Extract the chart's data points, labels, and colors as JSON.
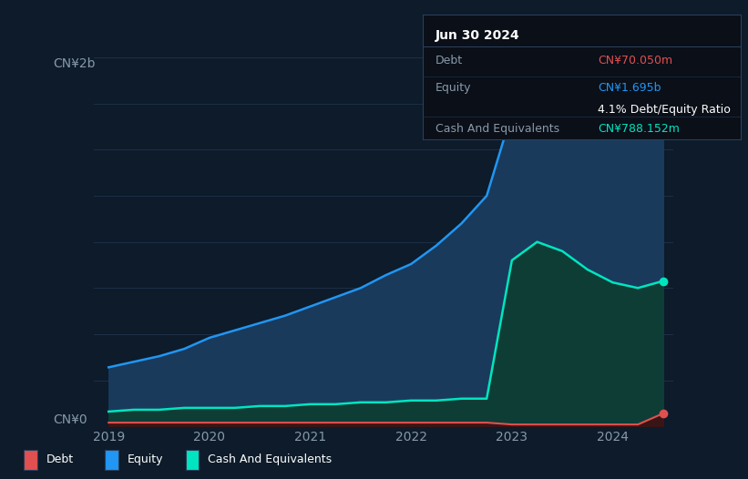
{
  "background_color": "#0d1b2a",
  "plot_bg_color": "#0d1b2a",
  "title": "Jun 30 2024",
  "ylabel_top": "CN¥2b",
  "ylabel_bottom": "CN¥0",
  "x_labels": [
    "2019",
    "2020",
    "2021",
    "2022",
    "2023",
    "2024"
  ],
  "equity_color": "#2196f3",
  "equity_fill_color": "#1a3a5c",
  "cash_color": "#00e5c0",
  "cash_fill_color": "#0d3d35",
  "debt_color": "#e05050",
  "debt_fill_color": "#3a1515",
  "grid_color": "#1e3048",
  "legend_border_color": "#2a3f5a",
  "tooltip_bg": "#0a0f18",
  "tooltip_border": "#2a3f5a",
  "x_values": [
    2019.0,
    2019.25,
    2019.5,
    2019.75,
    2020.0,
    2020.25,
    2020.5,
    2020.75,
    2021.0,
    2021.25,
    2021.5,
    2021.75,
    2022.0,
    2022.25,
    2022.5,
    2022.75,
    2023.0,
    2023.25,
    2023.5,
    2023.75,
    2024.0,
    2024.25,
    2024.5
  ],
  "equity_values": [
    0.32,
    0.35,
    0.38,
    0.42,
    0.48,
    0.52,
    0.56,
    0.6,
    0.65,
    0.7,
    0.75,
    0.82,
    0.88,
    0.98,
    1.1,
    1.25,
    1.7,
    1.72,
    1.74,
    1.76,
    1.78,
    1.8,
    1.695
  ],
  "cash_values": [
    0.08,
    0.09,
    0.09,
    0.1,
    0.1,
    0.1,
    0.11,
    0.11,
    0.12,
    0.12,
    0.13,
    0.13,
    0.14,
    0.14,
    0.15,
    0.15,
    0.9,
    1.0,
    0.95,
    0.85,
    0.78,
    0.75,
    0.788
  ],
  "debt_values": [
    0.02,
    0.02,
    0.02,
    0.02,
    0.02,
    0.02,
    0.02,
    0.02,
    0.02,
    0.02,
    0.02,
    0.02,
    0.02,
    0.02,
    0.02,
    0.02,
    0.01,
    0.01,
    0.01,
    0.01,
    0.01,
    0.01,
    0.07
  ],
  "ylim": [
    0,
    2.0
  ],
  "xlim": [
    2018.85,
    2024.6
  ],
  "legend_items": [
    "Debt",
    "Equity",
    "Cash And Equivalents"
  ],
  "tooltip_date": "Jun 30 2024",
  "tooltip_debt_label": "Debt",
  "tooltip_debt_value": "CN¥70.050m",
  "tooltip_equity_label": "Equity",
  "tooltip_equity_value": "CN¥1.695b",
  "tooltip_ratio": "4.1% Debt/Equity Ratio",
  "tooltip_cash_label": "Cash And Equivalents",
  "tooltip_cash_value": "CN¥788.152m"
}
